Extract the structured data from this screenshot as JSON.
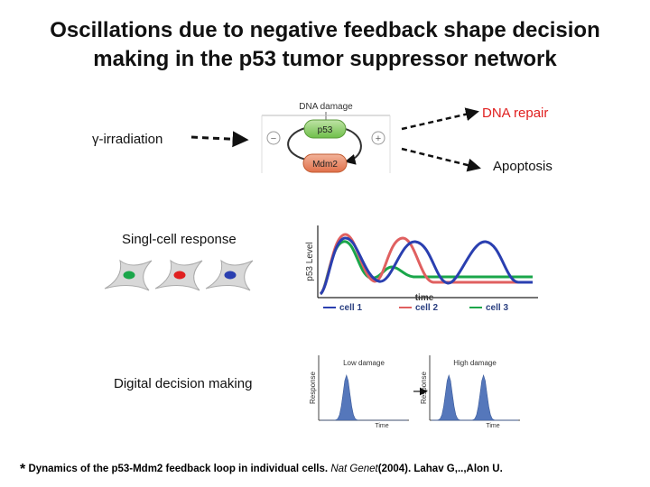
{
  "title": {
    "line1": "Oscillations due to negative feedback shape decision",
    "line2": "making in the p53 tumor suppressor network"
  },
  "stimulus": {
    "label": "γ-irradiation"
  },
  "network": {
    "header": "DNA damage",
    "node_top": "p53",
    "node_bottom": "Mdm2",
    "minus_sign": "−",
    "plus_sign": "+"
  },
  "outcomes": {
    "repair": "DNA repair",
    "apoptosis": "Apoptosis"
  },
  "single_cell": {
    "label": "Singl-cell response",
    "cell_colors": [
      "#1aa64a",
      "#e02020",
      "#2a3fb0"
    ]
  },
  "p53_plot": {
    "ylabel": "p53 Level",
    "xlabel": "time",
    "legend": [
      {
        "name": "cell 1",
        "color": "#2a3fb0"
      },
      {
        "name": "cell 2",
        "color": "#e06060"
      },
      {
        "name": "cell 3",
        "color": "#1aa64a"
      }
    ]
  },
  "decision": {
    "label": "Digital decision making",
    "low": {
      "title": "Low damage",
      "ylabel": "Response",
      "xlabel": "Time"
    },
    "high": {
      "title": "High damage",
      "ylabel": "Response",
      "xlabel": "Time"
    },
    "fill_color": "#5577bb"
  },
  "footnote": {
    "star": "*",
    "part1": "Dynamics of the p53-Mdm2 feedback loop in individual cells.",
    "journal": "Nat Genet",
    "part2": "(2004). Lahav G,..,Alon U."
  }
}
